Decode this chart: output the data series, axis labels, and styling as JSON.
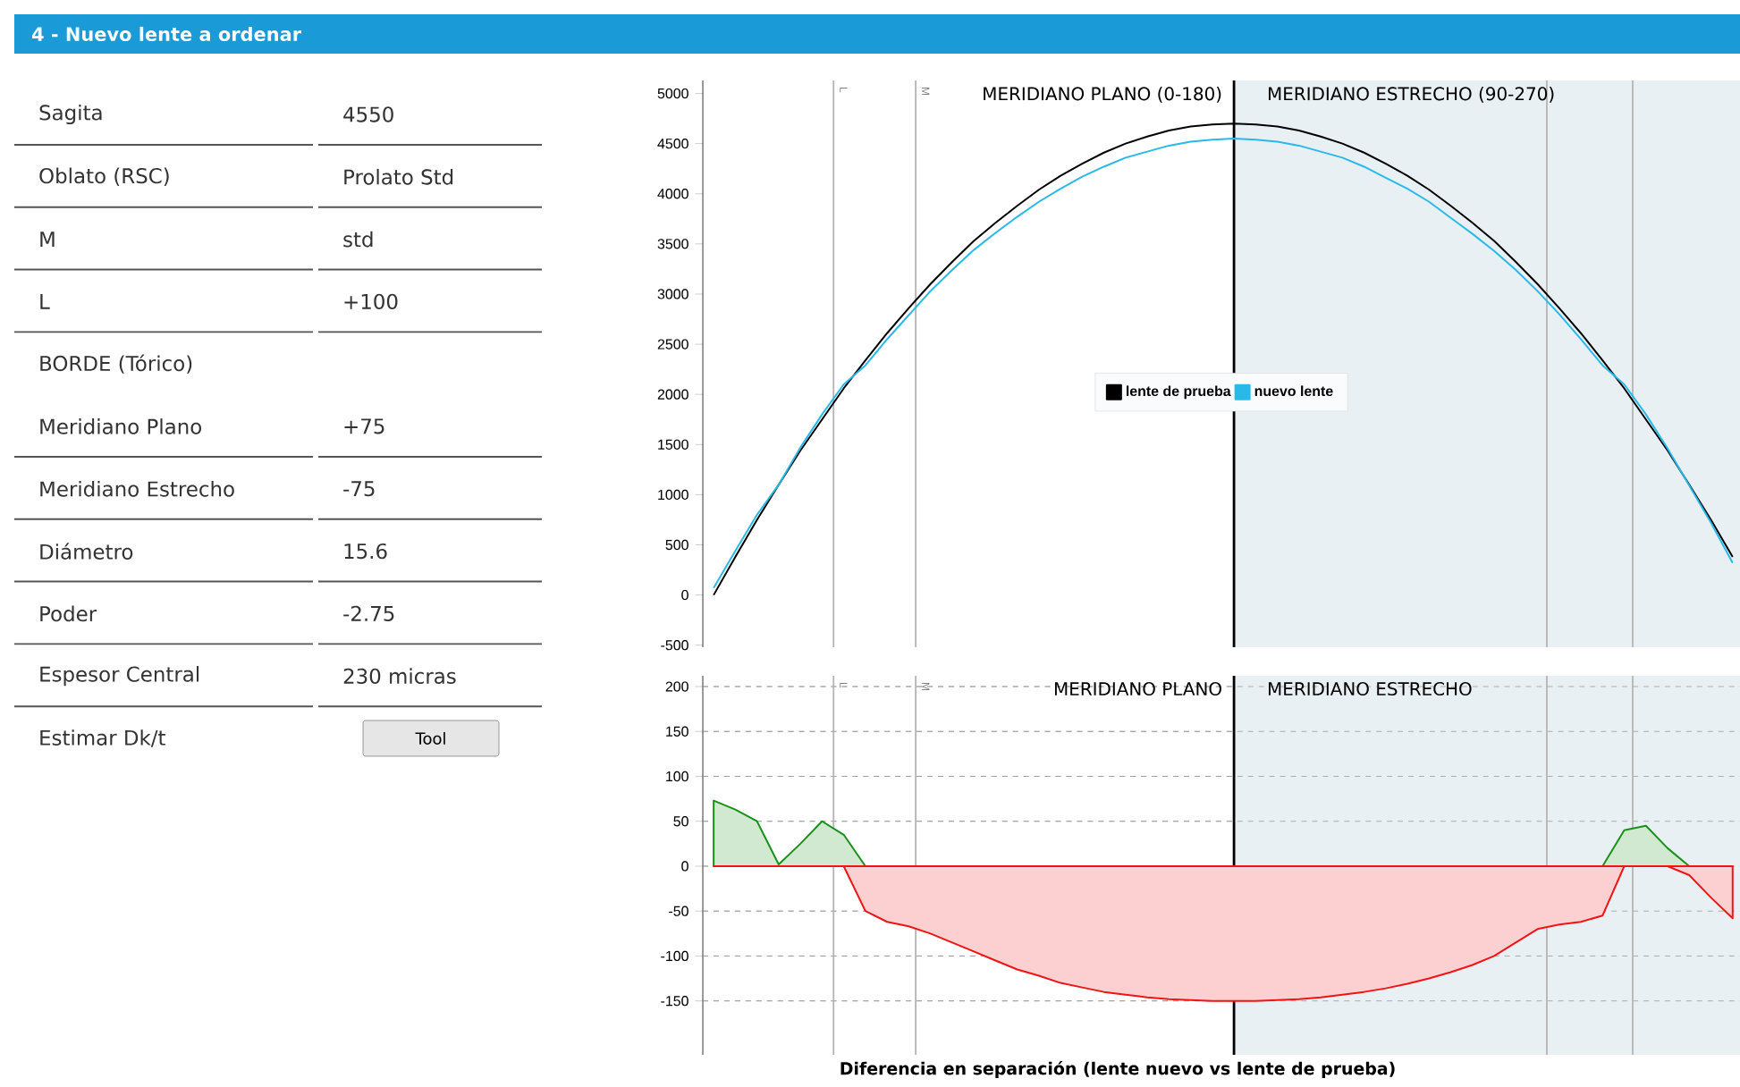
{
  "chart_data": [
    {
      "type": "other",
      "title": "4 - Nuevo lente a ordenar",
      "categories": [
        "Sagita",
        "Oblato (RSC)",
        "M",
        "L",
        "BORDE (Tórico)",
        "Meridiano Plano",
        "Meridiano Estrecho",
        "Diámetro",
        "Poder",
        "Espesor Central",
        "Estimar Dk/t"
      ],
      "value_labels": [
        "4550",
        "Prolato Std",
        "std",
        "+100",
        null,
        "+75",
        "-75",
        "15.6",
        "-2.75",
        "230 micras",
        "Tool"
      ]
    },
    {
      "type": "line",
      "categories": [
        null,
        null,
        null,
        null,
        null,
        null,
        null,
        null,
        null,
        null,
        null,
        null,
        null,
        null,
        null,
        null,
        null,
        null,
        null,
        null,
        null,
        null,
        null,
        null,
        null,
        null,
        null,
        null,
        null,
        null,
        null,
        null,
        null,
        null,
        null,
        null,
        null,
        null,
        null,
        null,
        null,
        null,
        null,
        null,
        null,
        null,
        null,
        null
      ],
      "series": [
        {
          "name": "lente de prueba",
          "color": "#000000",
          "values": [
            0,
            380,
            750,
            1100,
            1440,
            1750,
            2060,
            2340,
            2610,
            2860,
            3100,
            3320,
            3530,
            3710,
            3880,
            4040,
            4180,
            4300,
            4410,
            4500,
            4570,
            4630,
            4670,
            4690,
            4700,
            4690,
            4670,
            4630,
            4570,
            4500,
            4410,
            4300,
            4180,
            4040,
            3880,
            3710,
            3530,
            3320,
            3100,
            2860,
            2610,
            2340,
            2060,
            1750,
            1440,
            1100,
            750,
            380
          ]
        },
        {
          "name": "nuevo lente",
          "color": "#29b9e8",
          "values": [
            70,
            440,
            800,
            1100,
            1470,
            1800,
            2100,
            2290,
            2550,
            2790,
            3030,
            3240,
            3440,
            3610,
            3770,
            3920,
            4050,
            4170,
            4270,
            4360,
            4420,
            4480,
            4520,
            4540,
            4550,
            4540,
            4520,
            4480,
            4420,
            4360,
            4270,
            4160,
            4050,
            3920,
            3760,
            3600,
            3430,
            3240,
            3030,
            2800,
            2550,
            2290,
            2100,
            1800,
            1460,
            1090,
            720,
            320
          ]
        }
      ],
      "ylim": [
        -520,
        5130
      ],
      "yticks": [
        -500,
        0,
        500,
        1000,
        1500,
        2000,
        2500,
        3000,
        3500,
        4000,
        4500,
        5000
      ],
      "legend": "center",
      "tick_labels": "y",
      "annotations": [
        "MERIDIANO PLANO (0-180)",
        "MERIDIANO ESTRECHO (90-270)",
        "L",
        "M"
      ]
    },
    {
      "type": "area",
      "categories": [
        null,
        null,
        null,
        null,
        null,
        null,
        null,
        null,
        null,
        null,
        null,
        null,
        null,
        null,
        null,
        null,
        null,
        null,
        null,
        null,
        null,
        null,
        null,
        null,
        null,
        null,
        null,
        null,
        null,
        null,
        null,
        null,
        null,
        null,
        null,
        null,
        null,
        null,
        null,
        null,
        null,
        null,
        null,
        null,
        null,
        null,
        null,
        null
      ],
      "series": [
        {
          "color": "#d1e9d1",
          "values": [
            73,
            63,
            50,
            2,
            25,
            50,
            35,
            0,
            0,
            0,
            0,
            0,
            0,
            0,
            0,
            0,
            0,
            0,
            0,
            0,
            0,
            0,
            0,
            0,
            0,
            0,
            0,
            0,
            0,
            0,
            0,
            0,
            0,
            0,
            0,
            0,
            0,
            0,
            0,
            0,
            0,
            0,
            40,
            45,
            20,
            0,
            0,
            0
          ]
        },
        {
          "color": "#fcd0d0",
          "values": [
            0,
            0,
            0,
            0,
            0,
            0,
            0,
            -50,
            -62,
            -67,
            -75,
            -85,
            -95,
            -105,
            -115,
            -122,
            -130,
            -135,
            -140,
            -143,
            -146,
            -148,
            -149,
            -150,
            -150,
            -150,
            -149,
            -148,
            -146,
            -143,
            -140,
            -136,
            -131,
            -125,
            -118,
            -110,
            -100,
            -85,
            -70,
            -65,
            -62,
            -55,
            0,
            0,
            0,
            -10,
            -35,
            -58
          ]
        }
      ],
      "ylim": [
        -210,
        212
      ],
      "yticks": [
        -150,
        -100,
        -50,
        0,
        50,
        100,
        150,
        200
      ],
      "grid": "y",
      "tick_labels": "y",
      "xlabel": "Diferencia en separación (lente nuevo vs lente de prueba)",
      "annotations": [
        "MERIDIANO PLANO",
        "MERIDIANO ESTRECHO",
        "L",
        "M"
      ]
    }
  ]
}
